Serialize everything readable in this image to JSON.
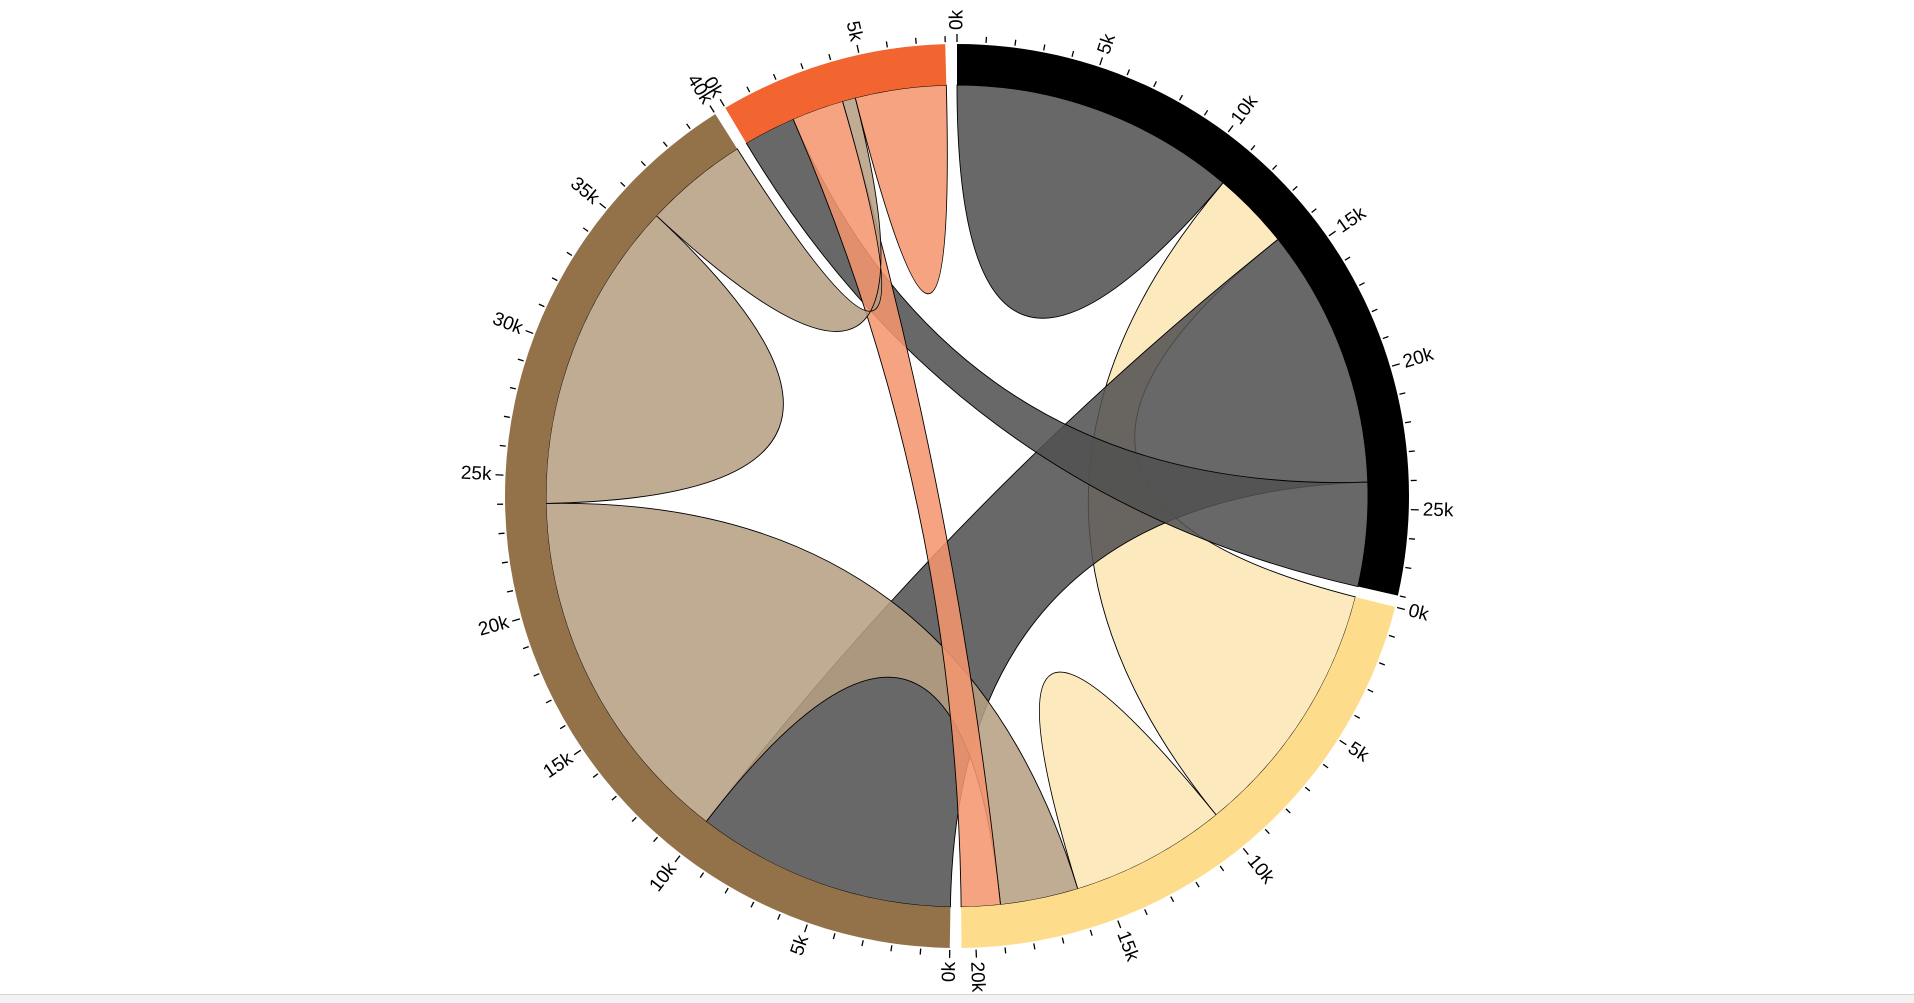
{
  "chart_data": {
    "type": "chord",
    "title": "",
    "tick_step": 1000,
    "label_step": 5000,
    "label_suffix": "k",
    "groups": [
      {
        "color": "#000000",
        "total": 28000
      },
      {
        "color": "#FDDC8C",
        "total": 20500
      },
      {
        "color": "#947249",
        "total": 40000
      },
      {
        "color": "#F26430",
        "total": 8000
      }
    ],
    "ribbon_colors": {
      "black": "#525252",
      "brown": "#B79F83",
      "orange": "#F4956E",
      "yellow": "#FCE6B4"
    },
    "matrix": [
      [
        11000,
        3000,
        10000,
        4000
      ],
      [
        10000,
        6000,
        3000,
        1500
      ],
      [
        10000,
        14000,
        12000,
        4000
      ],
      [
        2000,
        2000,
        500,
        3500
      ]
    ]
  },
  "ui": {
    "bottom_bar_color": "#f2f2f2"
  }
}
